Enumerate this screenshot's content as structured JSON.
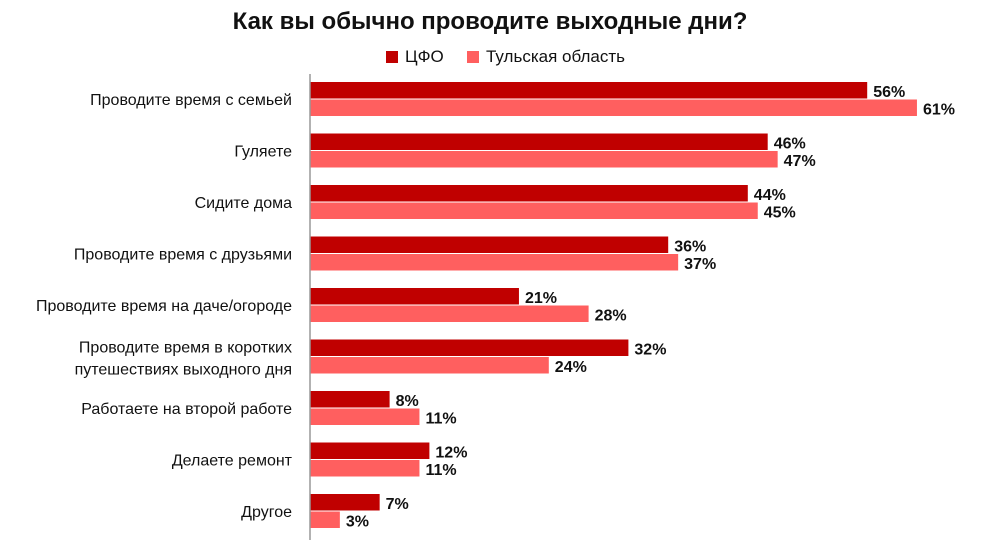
{
  "chart_data": {
    "type": "bar",
    "orientation": "horizontal",
    "title": "Как вы обычно проводите выходные дни?",
    "categories": [
      "Проводите время с семьей",
      "Гуляете",
      "Сидите дома",
      "Проводите время с друзьями",
      "Проводите время на даче/огороде",
      "Проводите время в коротких путешествиях выходного дня",
      "Работаете на второй работе",
      "Делаете ремонт",
      "Другое"
    ],
    "series": [
      {
        "name": "ЦФО",
        "color": "#c00000",
        "values": [
          56,
          46,
          44,
          36,
          21,
          32,
          8,
          12,
          7
        ]
      },
      {
        "name": "Тульская область",
        "color": "#ff5f5f",
        "values": [
          61,
          47,
          45,
          37,
          28,
          24,
          11,
          11,
          3
        ]
      }
    ],
    "value_suffix": "%",
    "xlim": [
      0,
      65
    ],
    "grid": false,
    "legend_position": "top-center",
    "axis_color": "#999999"
  }
}
